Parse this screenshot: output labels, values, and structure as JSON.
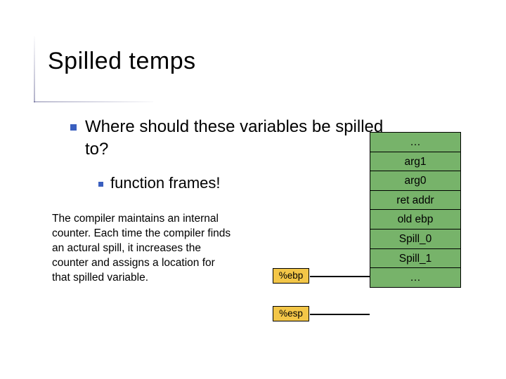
{
  "slide": {
    "title": "Spilled temps",
    "bullet1_line1": "Where should these variables be spilled",
    "bullet1_line2": "to?",
    "bullet2": "function frames!",
    "paragraph": "The compiler maintains an internal counter. Each time the compiler finds an actural spill, it increases the counter and assigns a location for that spilled variable.",
    "pointers": {
      "ebp": "%ebp",
      "esp": "%esp"
    },
    "stack_cells": [
      "…",
      "arg1",
      "arg0",
      "ret addr",
      "old ebp",
      "Spill_0",
      "Spill_1",
      "…"
    ],
    "colors": {
      "bullet_square": "#3a5fbf",
      "stack_fill": "#77b36a",
      "pointer_fill": "#f3c648",
      "border": "#000000",
      "text": "#000000",
      "background": "#ffffff"
    },
    "fontsizes": {
      "title": 34,
      "bullet1": 24,
      "bullet2": 22,
      "paragraph": 15.5,
      "cell": 15.5,
      "pointer": 13.5
    },
    "layout": {
      "slide_width": 720,
      "slide_height": 540,
      "stack_cell_width": 130,
      "stack_cell_height": 29,
      "pointer_width": 52,
      "pointer_height": 22
    }
  }
}
